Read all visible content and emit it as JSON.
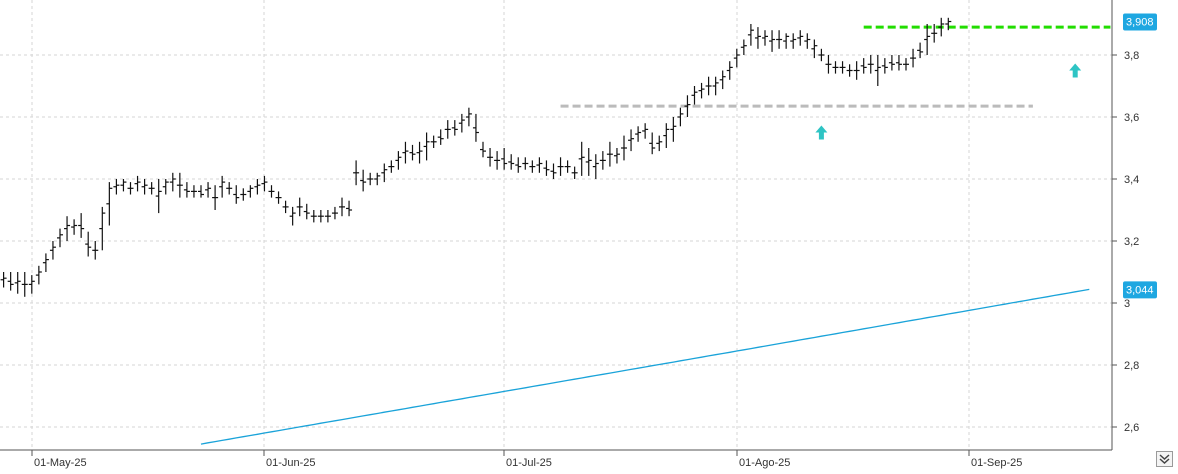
{
  "colors": {
    "price_bars": "#111111",
    "moving_average": "#1aa3d9",
    "resistance_green": "#22dd00",
    "resistance_gray": "#bbbbbb",
    "arrow": "#2ec4c4",
    "badge": "#1ea7e1"
  },
  "icons": {
    "scroll_button": "chevron-double-down-icon",
    "arrows": "arrow-up-icon"
  },
  "chart_data": {
    "type": "ohlc",
    "y_ticks": [
      2.6,
      2.8,
      3,
      3.2,
      3.4,
      3.6,
      3.8
    ],
    "y_tick_labels": [
      "2,6",
      "2,8",
      "3",
      "3,2",
      "3,4",
      "3,6",
      "3,8"
    ],
    "ylim": [
      2.55,
      4.0
    ],
    "x_tick_labels": [
      "01-May-25",
      "01-Jun-25",
      "01-Jul-25",
      "01-Ago-25",
      "01-Sep-25"
    ],
    "x_tick_bar_index": [
      4,
      37,
      71,
      104,
      137
    ],
    "grid": true,
    "last_price_label": "3,908",
    "last_price_value": 3.908,
    "moving_average_label": "3,044",
    "moving_average_value": 3.044,
    "moving_average": {
      "start_bar": 28,
      "start_value": 2.545,
      "mid_bar": 104,
      "mid_value": 2.845,
      "end_bar": 154,
      "end_value": 3.044
    },
    "horizontal_lines": [
      {
        "name": "green_resistance",
        "value": 3.89,
        "from_bar": 122,
        "to_bar": 157
      },
      {
        "name": "gray_resistance",
        "value": 3.635,
        "from_bar": 79,
        "to_bar": 146
      }
    ],
    "arrows": [
      {
        "bar": 116,
        "value": 3.55
      },
      {
        "bar": 152,
        "value": 3.75
      }
    ],
    "bars": [
      [
        3.1,
        3.05,
        3.08
      ],
      [
        3.1,
        3.04,
        3.06
      ],
      [
        3.1,
        3.03,
        3.07
      ],
      [
        3.1,
        3.02,
        3.06
      ],
      [
        3.09,
        3.03,
        3.07
      ],
      [
        3.12,
        3.06,
        3.1
      ],
      [
        3.16,
        3.1,
        3.14
      ],
      [
        3.2,
        3.14,
        3.18
      ],
      [
        3.24,
        3.18,
        3.22
      ],
      [
        3.28,
        3.2,
        3.25
      ],
      [
        3.27,
        3.22,
        3.25
      ],
      [
        3.29,
        3.21,
        3.24
      ],
      [
        3.23,
        3.15,
        3.18
      ],
      [
        3.2,
        3.14,
        3.17
      ],
      [
        3.31,
        3.17,
        3.29
      ],
      [
        3.39,
        3.25,
        3.37
      ],
      [
        3.4,
        3.35,
        3.38
      ],
      [
        3.4,
        3.36,
        3.39
      ],
      [
        3.39,
        3.35,
        3.37
      ],
      [
        3.41,
        3.36,
        3.39
      ],
      [
        3.4,
        3.35,
        3.38
      ],
      [
        3.39,
        3.35,
        3.37
      ],
      [
        3.4,
        3.29,
        3.36
      ],
      [
        3.4,
        3.35,
        3.39
      ],
      [
        3.42,
        3.36,
        3.4
      ],
      [
        3.42,
        3.34,
        3.38
      ],
      [
        3.39,
        3.34,
        3.36
      ],
      [
        3.38,
        3.34,
        3.36
      ],
      [
        3.38,
        3.34,
        3.35
      ],
      [
        3.39,
        3.34,
        3.37
      ],
      [
        3.38,
        3.3,
        3.34
      ],
      [
        3.41,
        3.34,
        3.39
      ],
      [
        3.39,
        3.35,
        3.37
      ],
      [
        3.38,
        3.32,
        3.34
      ],
      [
        3.37,
        3.33,
        3.35
      ],
      [
        3.38,
        3.34,
        3.37
      ],
      [
        3.4,
        3.35,
        3.38
      ],
      [
        3.41,
        3.36,
        3.39
      ],
      [
        3.38,
        3.34,
        3.36
      ],
      [
        3.36,
        3.32,
        3.34
      ],
      [
        3.33,
        3.29,
        3.31
      ],
      [
        3.31,
        3.25,
        3.29
      ],
      [
        3.34,
        3.28,
        3.31
      ],
      [
        3.32,
        3.27,
        3.29
      ],
      [
        3.3,
        3.26,
        3.28
      ],
      [
        3.3,
        3.26,
        3.28
      ],
      [
        3.3,
        3.26,
        3.28
      ],
      [
        3.31,
        3.27,
        3.29
      ],
      [
        3.34,
        3.28,
        3.31
      ],
      [
        3.33,
        3.28,
        3.3
      ],
      [
        3.46,
        3.38,
        3.42
      ],
      [
        3.43,
        3.36,
        3.39
      ],
      [
        3.42,
        3.38,
        3.4
      ],
      [
        3.42,
        3.38,
        3.41
      ],
      [
        3.45,
        3.39,
        3.43
      ],
      [
        3.46,
        3.42,
        3.44
      ],
      [
        3.49,
        3.43,
        3.47
      ],
      [
        3.52,
        3.45,
        3.49
      ],
      [
        3.51,
        3.46,
        3.48
      ],
      [
        3.52,
        3.45,
        3.49
      ],
      [
        3.55,
        3.46,
        3.52
      ],
      [
        3.54,
        3.5,
        3.52
      ],
      [
        3.56,
        3.51,
        3.53
      ],
      [
        3.59,
        3.53,
        3.56
      ],
      [
        3.59,
        3.54,
        3.56
      ],
      [
        3.61,
        3.55,
        3.59
      ],
      [
        3.63,
        3.57,
        3.61
      ],
      [
        3.61,
        3.52,
        3.55
      ],
      [
        3.52,
        3.47,
        3.49
      ],
      [
        3.5,
        3.44,
        3.47
      ],
      [
        3.49,
        3.43,
        3.46
      ],
      [
        3.5,
        3.43,
        3.45
      ],
      [
        3.48,
        3.43,
        3.45
      ],
      [
        3.47,
        3.42,
        3.44
      ],
      [
        3.47,
        3.43,
        3.45
      ],
      [
        3.46,
        3.42,
        3.44
      ],
      [
        3.47,
        3.42,
        3.45
      ],
      [
        3.46,
        3.41,
        3.43
      ],
      [
        3.45,
        3.4,
        3.42
      ],
      [
        3.47,
        3.41,
        3.44
      ],
      [
        3.46,
        3.42,
        3.44
      ],
      [
        3.44,
        3.4,
        3.42
      ],
      [
        3.52,
        3.41,
        3.47
      ],
      [
        3.5,
        3.41,
        3.46
      ],
      [
        3.48,
        3.4,
        3.45
      ],
      [
        3.49,
        3.43,
        3.46
      ],
      [
        3.52,
        3.44,
        3.48
      ],
      [
        3.5,
        3.45,
        3.48
      ],
      [
        3.54,
        3.46,
        3.5
      ],
      [
        3.56,
        3.49,
        3.53
      ],
      [
        3.57,
        3.52,
        3.55
      ],
      [
        3.58,
        3.53,
        3.56
      ],
      [
        3.55,
        3.48,
        3.5
      ],
      [
        3.54,
        3.49,
        3.52
      ],
      [
        3.58,
        3.5,
        3.56
      ],
      [
        3.6,
        3.52,
        3.57
      ],
      [
        3.63,
        3.57,
        3.61
      ],
      [
        3.67,
        3.6,
        3.64
      ],
      [
        3.7,
        3.64,
        3.68
      ],
      [
        3.71,
        3.66,
        3.69
      ],
      [
        3.73,
        3.67,
        3.7
      ],
      [
        3.73,
        3.67,
        3.71
      ],
      [
        3.75,
        3.69,
        3.73
      ],
      [
        3.78,
        3.72,
        3.76
      ],
      [
        3.82,
        3.76,
        3.8
      ],
      [
        3.85,
        3.8,
        3.83
      ],
      [
        3.9,
        3.83,
        3.88
      ],
      [
        3.89,
        3.82,
        3.86
      ],
      [
        3.88,
        3.83,
        3.86
      ],
      [
        3.88,
        3.81,
        3.85
      ],
      [
        3.88,
        3.82,
        3.85
      ],
      [
        3.87,
        3.82,
        3.86
      ],
      [
        3.87,
        3.82,
        3.85
      ],
      [
        3.88,
        3.83,
        3.86
      ],
      [
        3.87,
        3.82,
        3.85
      ],
      [
        3.85,
        3.79,
        3.83
      ],
      [
        3.82,
        3.78,
        3.8
      ],
      [
        3.8,
        3.74,
        3.77
      ],
      [
        3.78,
        3.74,
        3.76
      ],
      [
        3.78,
        3.74,
        3.76
      ],
      [
        3.77,
        3.73,
        3.75
      ],
      [
        3.78,
        3.72,
        3.75
      ],
      [
        3.79,
        3.74,
        3.76
      ],
      [
        3.8,
        3.74,
        3.77
      ],
      [
        3.8,
        3.7,
        3.76
      ],
      [
        3.79,
        3.74,
        3.76
      ],
      [
        3.8,
        3.75,
        3.77
      ],
      [
        3.8,
        3.75,
        3.77
      ],
      [
        3.79,
        3.75,
        3.77
      ],
      [
        3.82,
        3.76,
        3.79
      ],
      [
        3.84,
        3.79,
        3.81
      ],
      [
        3.9,
        3.8,
        3.86
      ],
      [
        3.9,
        3.84,
        3.87
      ],
      [
        3.92,
        3.86,
        3.9
      ],
      [
        3.92,
        3.88,
        3.908
      ]
    ]
  }
}
